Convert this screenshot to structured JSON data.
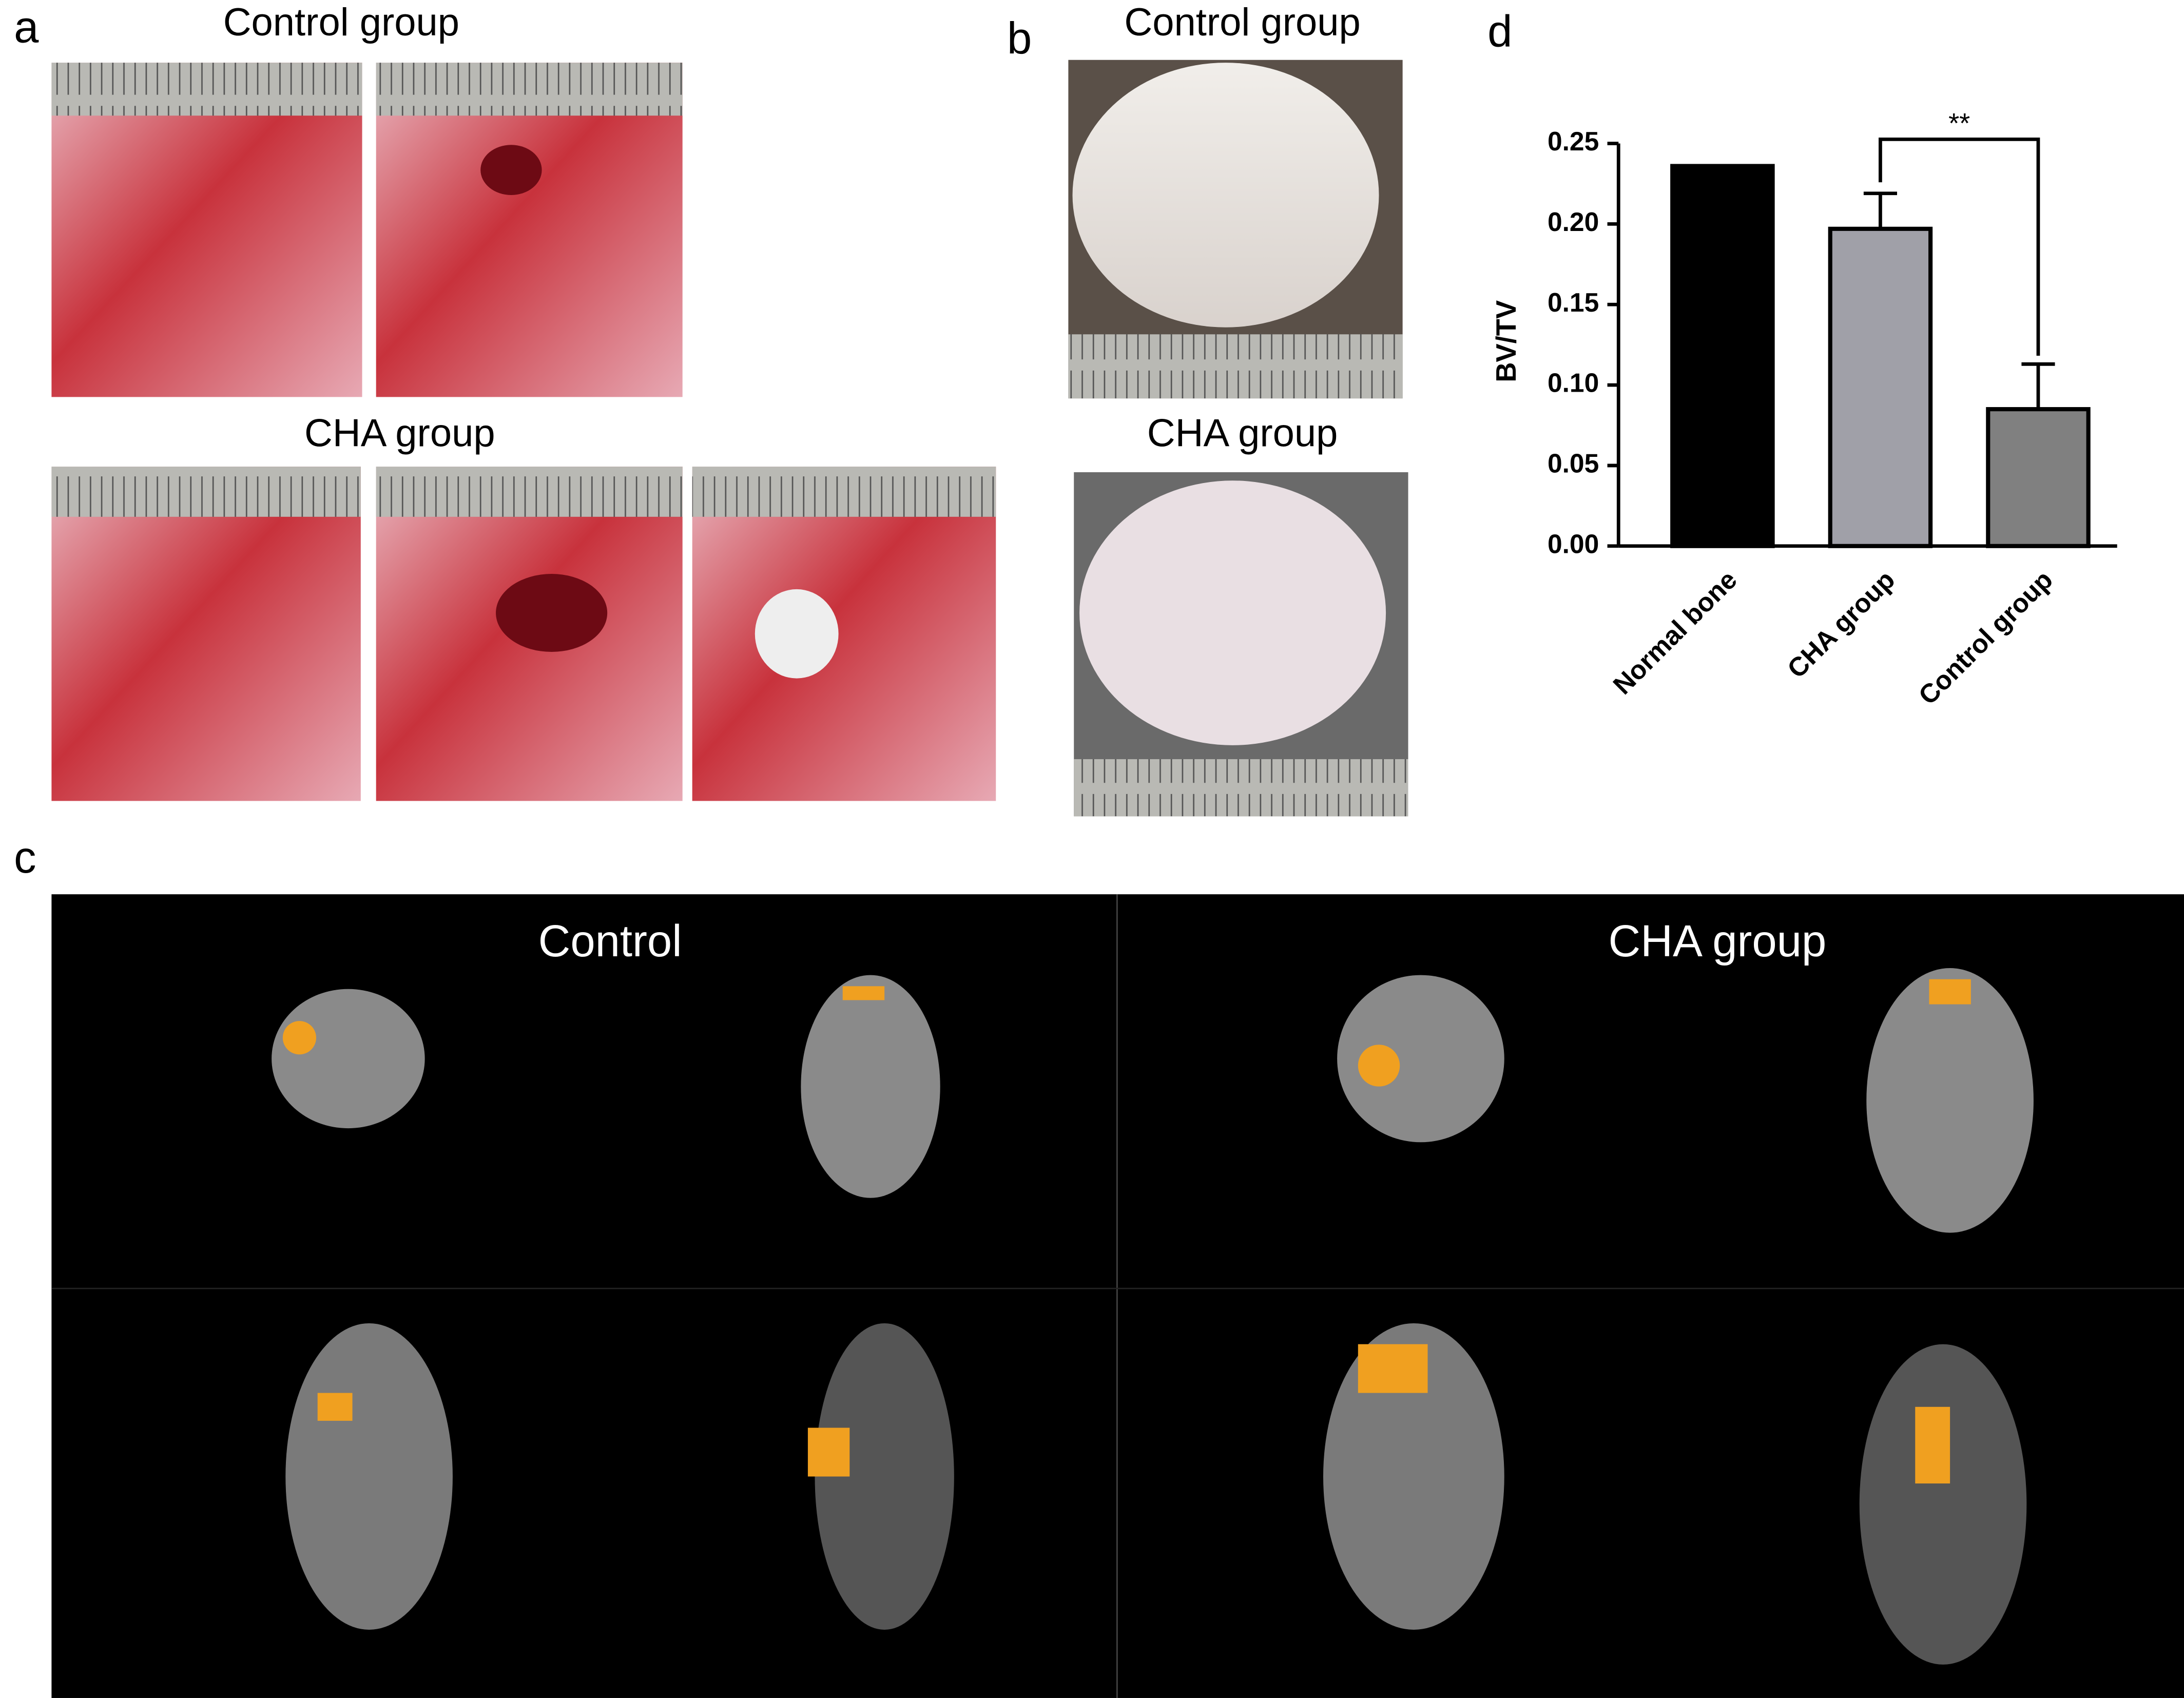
{
  "panel_labels": [
    "a",
    "b",
    "c",
    "d"
  ],
  "panel_a": {
    "control_title": "Control group",
    "cha_title": "CHA group"
  },
  "panel_b": {
    "control_title": "Control group",
    "cha_title": "CHA group"
  },
  "panel_c": {
    "left_title": "Control",
    "right_title": "CHA group"
  },
  "chart_data": {
    "type": "bar",
    "ylabel": "BV/TV",
    "categories": [
      "Normal bone",
      "CHA group",
      "Control group"
    ],
    "values": [
      0.236,
      0.197,
      0.085
    ],
    "errors": [
      0,
      0.022,
      0.028
    ],
    "colors": [
      "#000000",
      "#a0a0a8",
      "#808080"
    ],
    "ylim": [
      0,
      0.25
    ],
    "yticks": [
      {
        "value": 0,
        "label": "0.00"
      },
      {
        "value": 0.05,
        "label": "0.05"
      },
      {
        "value": 0.1,
        "label": "0.10"
      },
      {
        "value": 0.15,
        "label": "0.15"
      },
      {
        "value": 0.2,
        "label": "0.20"
      },
      {
        "value": 0.25,
        "label": "0.25"
      }
    ],
    "annotation": "**"
  }
}
